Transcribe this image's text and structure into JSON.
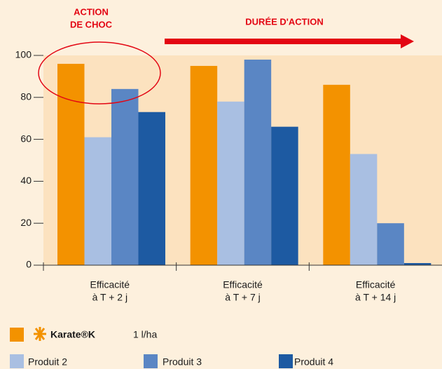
{
  "chart_data": {
    "type": "bar",
    "annotations": [
      "ACTION",
      "DE CHOC",
      "DURÉE D'ACTION"
    ],
    "categories": [
      [
        "Efficacité",
        "à T + 2 j"
      ],
      [
        "Efficacité",
        "à T + 7 j"
      ],
      [
        "Efficacité",
        "à T + 14 j"
      ]
    ],
    "series": [
      {
        "name": "Karate®K",
        "dose": "1 l/ha",
        "color": "#f39200",
        "values": [
          96,
          95,
          86
        ]
      },
      {
        "name": "Produit 2",
        "color": "#a9bfe2",
        "values": [
          61,
          78,
          53
        ]
      },
      {
        "name": "Produit 3",
        "color": "#5a86c4",
        "values": [
          84,
          98,
          20
        ]
      },
      {
        "name": "Produit 4",
        "color": "#1d5aa2",
        "values": [
          73,
          66,
          1
        ]
      }
    ],
    "ylim": [
      0,
      100
    ],
    "yticks": [
      0,
      20,
      40,
      60,
      80,
      100
    ]
  }
}
